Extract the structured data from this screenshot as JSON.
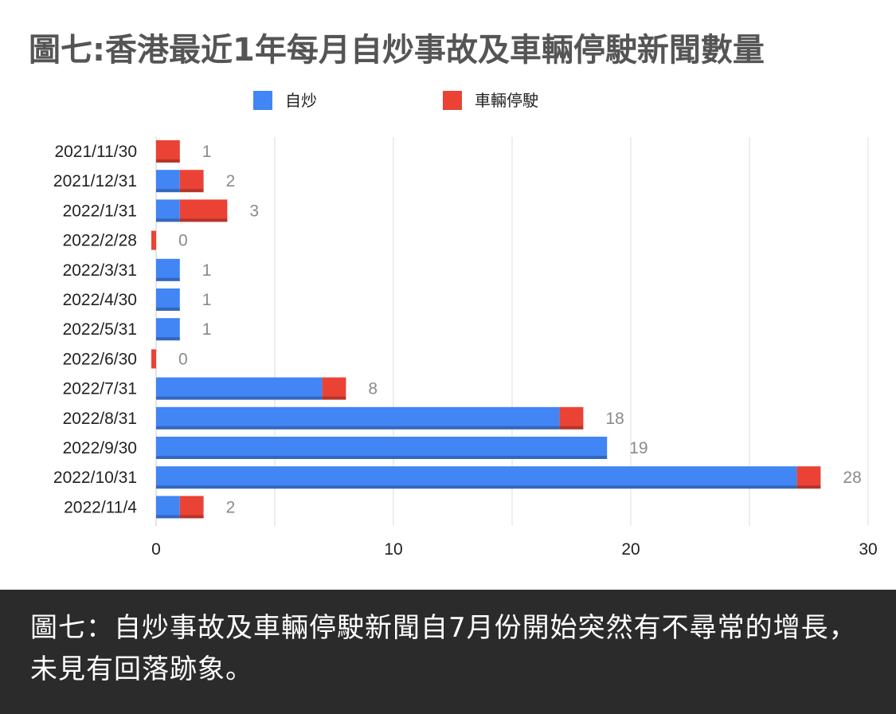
{
  "chart_data": {
    "type": "bar",
    "orientation": "horizontal",
    "stacked": true,
    "title": "圖七:香港最近1年每月自炒事故及車輛停駛新聞數量",
    "categories": [
      "2021/11/30",
      "2021/12/31",
      "2022/1/31",
      "2022/2/28",
      "2022/3/31",
      "2022/4/30",
      "2022/5/31",
      "2022/6/30",
      "2022/7/31",
      "2022/8/31",
      "2022/9/30",
      "2022/10/31",
      "2022/11/4"
    ],
    "series": [
      {
        "name": "自炒",
        "color": "#4285f4",
        "values": [
          0,
          1,
          1,
          0,
          1,
          1,
          1,
          0,
          7,
          17,
          19,
          27,
          1
        ]
      },
      {
        "name": "車輛停駛",
        "color": "#ea4335",
        "values": [
          1,
          1,
          2,
          0,
          0,
          0,
          0,
          0,
          1,
          1,
          0,
          1,
          1
        ]
      }
    ],
    "totals": [
      1,
      2,
      3,
      0,
      1,
      1,
      1,
      0,
      8,
      18,
      19,
      28,
      2
    ],
    "xlim": [
      0,
      30
    ],
    "x_ticks": [
      0,
      10,
      20,
      30
    ],
    "grid": true,
    "legend_position": "top"
  },
  "caption": "圖七：自炒事故及車輛停駛新聞自7月份開始突然有不尋常的增長，未見有回落跡象。"
}
